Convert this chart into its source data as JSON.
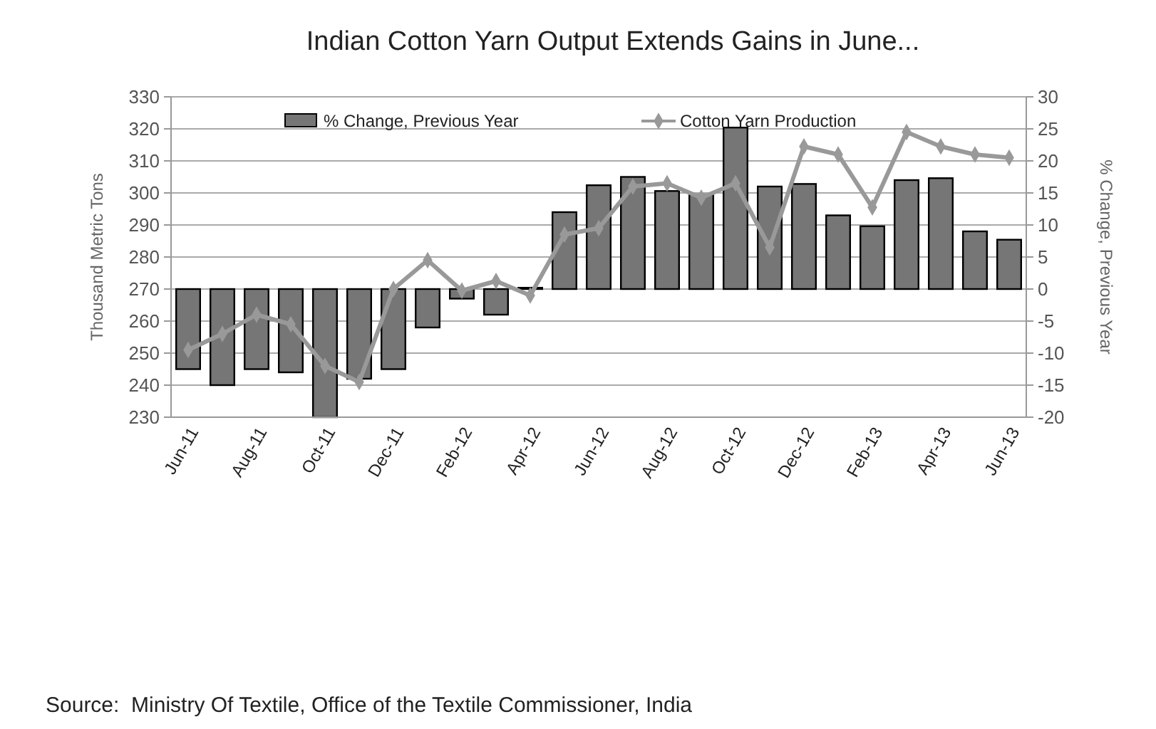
{
  "chart_data": {
    "type": "bar",
    "title": "Indian Cotton Yarn Output Extends Gains in June...",
    "ylabel": "Thousand Metric Tons",
    "y2label": "% Change, Previous Year",
    "categories": [
      "Jun-11",
      null,
      "Aug-11",
      null,
      "Oct-11",
      null,
      "Dec-11",
      null,
      "Feb-12",
      null,
      "Apr-12",
      null,
      "Jun-12",
      null,
      "Aug-12",
      null,
      "Oct-12",
      null,
      "Dec-12",
      null,
      "Feb-13",
      null,
      "Apr-13",
      null,
      "Jun-13"
    ],
    "series": [
      {
        "name": "% Change, Previous Year",
        "axis": "y2",
        "color": "#767676",
        "values": [
          -12.5,
          -15,
          -12.5,
          -13,
          -20,
          -14,
          -12.5,
          -6,
          -1.5,
          -4,
          0.2,
          12,
          16.2,
          17.5,
          15.3,
          14.7,
          25.2,
          16,
          16.4,
          11.5,
          9.8,
          17,
          17.3,
          9,
          7.7
        ]
      },
      {
        "name": "Cotton Yarn Production",
        "type": "line",
        "axis": "y",
        "color": "#999999",
        "marker": "diamond",
        "values": [
          251,
          256,
          262,
          259,
          246,
          241,
          270,
          279,
          269.5,
          272.5,
          268,
          287,
          289,
          302,
          303,
          298.5,
          303,
          283,
          314.5,
          312,
          295.5,
          319,
          314.5,
          312,
          311
        ]
      }
    ],
    "ylim": [
      230,
      330
    ],
    "yticks": [
      230,
      240,
      250,
      260,
      270,
      280,
      290,
      300,
      310,
      320,
      330
    ],
    "y2lim": [
      -20,
      30
    ],
    "y2ticks": [
      -20,
      -15,
      -10,
      -5,
      0,
      5,
      10,
      15,
      20,
      25,
      30
    ],
    "grid": "y",
    "legend": "top",
    "annotations": [
      "Source:  Ministry Of Textile, Office of the Textile Commissioner, India"
    ]
  }
}
